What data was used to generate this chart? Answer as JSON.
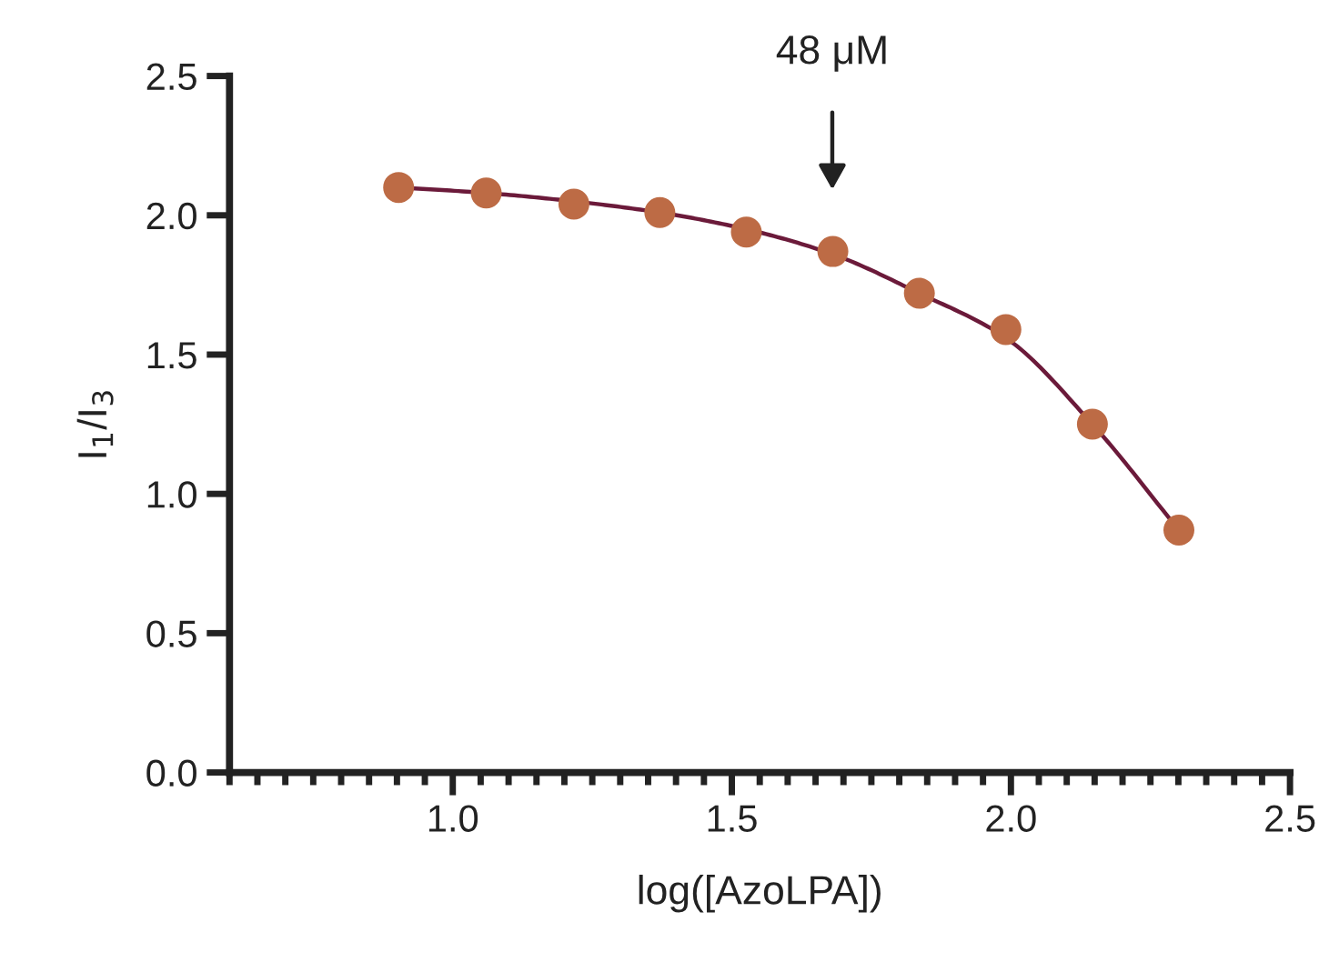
{
  "chart_data": {
    "type": "scatter",
    "xlabel": "log([AzoLPA])",
    "ylabel": "I$_{1}$/I$_{3}$",
    "x": [
      0.903,
      1.06,
      1.217,
      1.371,
      1.526,
      1.681,
      1.836,
      1.991,
      2.146,
      2.301
    ],
    "series": [
      {
        "type": "line",
        "color": "#6b1a3a",
        "x": [
          0.903,
          1.06,
          1.217,
          1.371,
          1.526,
          1.681,
          1.836,
          1.991,
          2.146,
          2.301
        ],
        "values": [
          2.1,
          2.08,
          2.05,
          2.01,
          1.95,
          1.86,
          1.72,
          1.56,
          1.25,
          0.87
        ]
      },
      {
        "color": "#bd6b45",
        "marker": "circle",
        "values": [
          2.1,
          2.08,
          2.04,
          2.01,
          1.94,
          1.87,
          1.72,
          1.59,
          1.25,
          0.87
        ]
      }
    ],
    "annotations": [
      "48 μM"
    ],
    "xlim": [
      0.6,
      2.5
    ],
    "xticks": [
      {
        "value": 0.6,
        "label": null
      },
      {
        "value": 0.65,
        "label": null
      },
      {
        "value": 0.7,
        "label": null
      },
      {
        "value": 0.75,
        "label": null
      },
      {
        "value": 0.8,
        "label": null
      },
      {
        "value": 0.85,
        "label": null
      },
      {
        "value": 0.9,
        "label": null
      },
      {
        "value": 0.95,
        "label": null
      },
      {
        "value": 1.0,
        "label": "1.0"
      },
      {
        "value": 1.05,
        "label": null
      },
      {
        "value": 1.1,
        "label": null
      },
      {
        "value": 1.15,
        "label": null
      },
      {
        "value": 1.2,
        "label": null
      },
      {
        "value": 1.25,
        "label": null
      },
      {
        "value": 1.3,
        "label": null
      },
      {
        "value": 1.35,
        "label": null
      },
      {
        "value": 1.4,
        "label": null
      },
      {
        "value": 1.45,
        "label": null
      },
      {
        "value": 1.5,
        "label": "1.5"
      },
      {
        "value": 1.55,
        "label": null
      },
      {
        "value": 1.6,
        "label": null
      },
      {
        "value": 1.65,
        "label": null
      },
      {
        "value": 1.7,
        "label": null
      },
      {
        "value": 1.75,
        "label": null
      },
      {
        "value": 1.8,
        "label": null
      },
      {
        "value": 1.85,
        "label": null
      },
      {
        "value": 1.9,
        "label": null
      },
      {
        "value": 1.95,
        "label": null
      },
      {
        "value": 2.0,
        "label": "2.0"
      },
      {
        "value": 2.05,
        "label": null
      },
      {
        "value": 2.1,
        "label": null
      },
      {
        "value": 2.15,
        "label": null
      },
      {
        "value": 2.2,
        "label": null
      },
      {
        "value": 2.25,
        "label": null
      },
      {
        "value": 2.3,
        "label": null
      },
      {
        "value": 2.35,
        "label": null
      },
      {
        "value": 2.4,
        "label": null
      },
      {
        "value": 2.45,
        "label": null
      },
      {
        "value": 2.5,
        "label": "2.5"
      }
    ],
    "ylim": [
      0.0,
      2.5
    ],
    "yticks": [
      {
        "value": 0.0,
        "label": "0.0"
      },
      {
        "value": 0.5,
        "label": "0.5"
      },
      {
        "value": 1.0,
        "label": "1.0"
      },
      {
        "value": 1.5,
        "label": "1.5"
      },
      {
        "value": 2.0,
        "label": "2.0"
      },
      {
        "value": 2.5,
        "label": "2.5"
      }
    ],
    "grid": false,
    "legend": false
  }
}
